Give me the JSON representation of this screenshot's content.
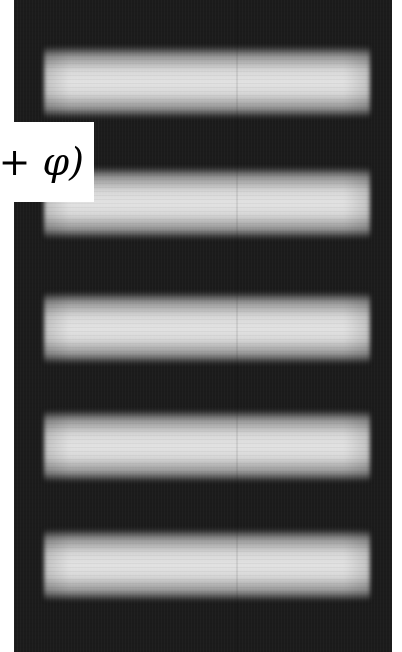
{
  "image": {
    "subject": "interference-fringes",
    "fringe_count": 5,
    "colors": {
      "background": "#1b1b1b",
      "fringe": "#e8e8e8",
      "label_background": "#ffffff",
      "label_text": "#000000"
    }
  },
  "formula": {
    "text": "+ φ)"
  }
}
